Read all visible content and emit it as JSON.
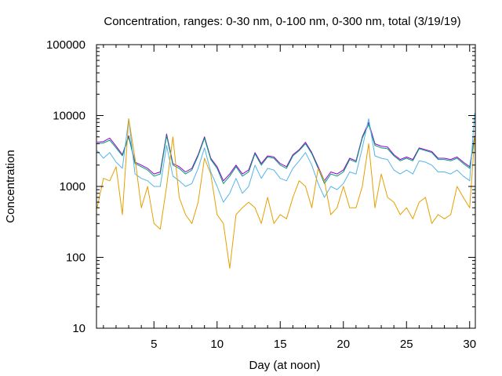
{
  "chart_data": {
    "type": "line",
    "title": "Concentration, ranges: 0-30 nm, 0-100 nm, 0-300 nm, total (3/19/19)",
    "xlabel": "Day (at noon)",
    "ylabel": "Concentration",
    "x_range": [
      0.45,
      30.45
    ],
    "y_range": [
      10,
      100000
    ],
    "y_scale": "log",
    "x_ticks": [
      5,
      10,
      15,
      20,
      25,
      30
    ],
    "x_tick_labels": [
      "5",
      "10",
      "15",
      "20",
      "25",
      "30"
    ],
    "y_ticks": [
      10,
      100,
      1000,
      10000,
      100000
    ],
    "y_tick_labels": [
      "10",
      "100",
      "1000",
      "10000",
      "100000"
    ],
    "grid": false,
    "legend": "none",
    "series": [
      {
        "color": "#9400d3",
        "x": [
          0.5,
          1.0,
          1.5,
          2.0,
          2.5,
          3.0,
          3.5,
          4.0,
          4.5,
          5.0,
          5.5,
          6.0,
          6.5,
          7.0,
          7.5,
          8.0,
          8.5,
          9.0,
          9.5,
          10.0,
          10.5,
          11.0,
          11.5,
          12.0,
          12.5,
          13.0,
          13.5,
          14.0,
          14.5,
          15.0,
          15.5,
          16.0,
          16.5,
          17.0,
          17.5,
          18.0,
          18.5,
          19.0,
          19.5,
          20.0,
          20.5,
          21.0,
          21.5,
          22.0,
          22.5,
          23.0,
          23.5,
          24.0,
          24.5,
          25.0,
          25.5,
          26.0,
          26.5,
          27.0,
          27.5,
          28.0,
          28.5,
          29.0,
          29.5,
          30.0,
          30.4
        ],
        "y": [
          4200,
          4300,
          4800,
          3700,
          2800,
          5200,
          2200,
          2000,
          1800,
          1500,
          1600,
          5500,
          2100,
          1900,
          1600,
          1800,
          2800,
          5000,
          2500,
          1900,
          1200,
          1500,
          2000,
          1500,
          1700,
          3000,
          2100,
          2700,
          2600,
          2100,
          1900,
          2800,
          3300,
          4200,
          3000,
          1900,
          1200,
          1600,
          1500,
          1700,
          2500,
          2300,
          5000,
          8000,
          4000,
          3700,
          3600,
          2800,
          2400,
          2600,
          2400,
          3500,
          3300,
          3100,
          2500,
          2500,
          2400,
          2600,
          2200,
          1900,
          5200
        ]
      },
      {
        "color": "#009e73",
        "x": [
          0.5,
          1.0,
          1.5,
          2.0,
          2.5,
          3.0,
          3.5,
          4.0,
          4.5,
          5.0,
          5.5,
          6.0,
          6.5,
          7.0,
          7.5,
          8.0,
          8.5,
          9.0,
          9.5,
          10.0,
          10.5,
          11.0,
          11.5,
          12.0,
          12.5,
          13.0,
          13.5,
          14.0,
          14.5,
          15.0,
          15.5,
          16.0,
          16.5,
          17.0,
          17.5,
          18.0,
          18.5,
          19.0,
          19.5,
          20.0,
          20.5,
          21.0,
          21.5,
          22.0,
          22.5,
          23.0,
          23.5,
          24.0,
          24.5,
          25.0,
          25.5,
          26.0,
          26.5,
          27.0,
          27.5,
          28.0,
          28.5,
          29.0,
          29.5,
          30.0,
          30.4
        ],
        "y": [
          4000,
          4100,
          4500,
          3500,
          2700,
          5000,
          2100,
          1900,
          1700,
          1400,
          1500,
          5200,
          2000,
          1800,
          1500,
          1700,
          2700,
          4800,
          2400,
          1800,
          1100,
          1400,
          1900,
          1400,
          1600,
          2900,
          2000,
          2600,
          2500,
          2000,
          1800,
          2700,
          3200,
          4000,
          2900,
          1800,
          1100,
          1500,
          1400,
          1600,
          2400,
          2200,
          4800,
          7500,
          3800,
          3500,
          3400,
          2700,
          2300,
          2500,
          2300,
          3400,
          3200,
          3000,
          2400,
          2400,
          2300,
          2500,
          2100,
          1800,
          5000
        ]
      },
      {
        "color": "#56b4e9",
        "x": [
          0.5,
          1.0,
          1.5,
          2.0,
          2.5,
          3.0,
          3.5,
          4.0,
          4.5,
          5.0,
          5.5,
          6.0,
          6.5,
          7.0,
          7.5,
          8.0,
          8.5,
          9.0,
          9.5,
          10.0,
          10.5,
          11.0,
          11.5,
          12.0,
          12.5,
          13.0,
          13.5,
          14.0,
          14.5,
          15.0,
          15.5,
          16.0,
          16.5,
          17.0,
          17.5,
          18.0,
          18.5,
          19.0,
          19.5,
          20.0,
          20.5,
          21.0,
          21.5,
          22.0,
          22.5,
          23.0,
          23.5,
          24.0,
          24.5,
          25.0,
          25.5,
          26.0,
          26.5,
          27.0,
          27.5,
          28.0,
          28.5,
          29.0,
          29.5,
          30.0,
          30.4
        ],
        "y": [
          3200,
          2500,
          3000,
          2200,
          1800,
          9000,
          1500,
          1300,
          1200,
          1000,
          1000,
          3800,
          1400,
          1200,
          1000,
          1100,
          1800,
          3500,
          1600,
          1000,
          600,
          800,
          1300,
          800,
          1000,
          2000,
          1300,
          1800,
          1700,
          1300,
          1200,
          1800,
          2300,
          3000,
          2000,
          1100,
          700,
          1000,
          900,
          1100,
          1600,
          1500,
          3500,
          9000,
          2700,
          2500,
          2400,
          1700,
          1500,
          1700,
          1500,
          2300,
          2200,
          2000,
          1600,
          1600,
          1500,
          1700,
          1400,
          1200,
          11000
        ]
      },
      {
        "color": "#e69f00",
        "x": [
          0.5,
          1.0,
          1.5,
          2.0,
          2.5,
          3.0,
          3.5,
          4.0,
          4.5,
          5.0,
          5.5,
          6.0,
          6.5,
          7.0,
          7.5,
          8.0,
          8.5,
          9.0,
          9.5,
          10.0,
          10.5,
          11.0,
          11.5,
          12.0,
          12.5,
          13.0,
          13.5,
          14.0,
          14.5,
          15.0,
          15.5,
          16.0,
          16.5,
          17.0,
          17.5,
          18.0,
          18.5,
          19.0,
          19.5,
          20.0,
          20.5,
          21.0,
          21.5,
          22.0,
          22.5,
          23.0,
          23.5,
          24.0,
          24.5,
          25.0,
          25.5,
          26.0,
          26.5,
          27.0,
          27.5,
          28.0,
          28.5,
          29.0,
          29.5,
          30.0,
          30.4
        ],
        "y": [
          500,
          1300,
          1200,
          1900,
          400,
          9000,
          2500,
          500,
          1000,
          300,
          250,
          1000,
          5000,
          700,
          400,
          300,
          600,
          2500,
          1500,
          400,
          300,
          70,
          400,
          500,
          600,
          500,
          300,
          700,
          300,
          400,
          350,
          700,
          1200,
          1000,
          500,
          1800,
          1200,
          400,
          500,
          1000,
          500,
          500,
          1000,
          4000,
          500,
          1500,
          700,
          600,
          400,
          500,
          350,
          600,
          700,
          300,
          400,
          350,
          400,
          1000,
          700,
          500,
          5000
        ]
      }
    ]
  }
}
